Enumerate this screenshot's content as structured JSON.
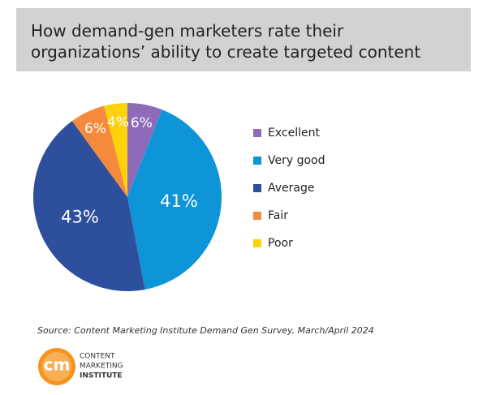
{
  "chart_data": {
    "type": "pie",
    "title": "How demand-gen marketers rate their organizations’ ability to create targeted content",
    "categories": [
      "Excellent",
      "Very good",
      "Average",
      "Fair",
      "Poor"
    ],
    "values": [
      6,
      41,
      43,
      6,
      4
    ],
    "value_labels": [
      "6%",
      "41%",
      "43%",
      "6%",
      "4%"
    ],
    "colors": [
      "#8e6bb9",
      "#0d95d8",
      "#2e509c",
      "#f58a3c",
      "#fdd20b"
    ],
    "legend": "right",
    "source": "Source: Content Marketing Institute Demand Gen Survey, March/April 2024"
  },
  "logo": {
    "mark": "cm",
    "lines": [
      "CONTENT",
      "MARKETING",
      "INSTITUTE"
    ]
  }
}
